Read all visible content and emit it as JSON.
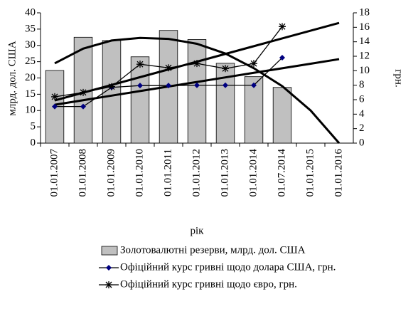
{
  "chart_data": {
    "type": "bar-line",
    "categories": [
      "01.01.2007",
      "01.01.2008",
      "01.01.2009",
      "01.01.2010",
      "01.01.2011",
      "01.01.2012",
      "01.01.2013",
      "01.01.2014",
      "01.07.2014",
      "01.01.2015",
      "01.01.2016"
    ],
    "xlabel": "рік",
    "ylabel": "млрд. дол. США",
    "y2label": "грн.",
    "ylim": [
      0,
      40
    ],
    "yticks": [
      0,
      5,
      10,
      15,
      20,
      25,
      30,
      35,
      40
    ],
    "y2lim": [
      0,
      18
    ],
    "y2ticks": [
      0,
      2,
      4,
      6,
      8,
      10,
      12,
      14,
      16,
      18
    ],
    "series": [
      {
        "name": "Золотовалютні резерви, млрд. дол. США",
        "kind": "bar",
        "axis": "y",
        "color": "#c0c0c0",
        "values": [
          22.3,
          32.5,
          31.5,
          26.5,
          34.6,
          31.8,
          24.5,
          20.4,
          17.1,
          null,
          null
        ]
      },
      {
        "name": "Офіційний курс гривні щодо долара США, грн.",
        "kind": "line",
        "marker": "diamond",
        "axis": "y2",
        "color": "#000080",
        "values": [
          5.05,
          5.05,
          7.7,
          7.95,
          7.95,
          7.99,
          7.99,
          7.99,
          11.8,
          null,
          null
        ]
      },
      {
        "name": "Офіційний курс гривні щодо євро, грн.",
        "kind": "line",
        "marker": "star",
        "axis": "y2",
        "color": "#000000",
        "values": [
          6.4,
          7.0,
          7.8,
          10.9,
          10.4,
          11.0,
          10.3,
          11.0,
          16.1,
          null,
          null
        ]
      }
    ],
    "trendlines": [
      {
        "axis": "y",
        "color": "#000000",
        "values": [
          24.5,
          29,
          31.5,
          32.3,
          32,
          30.5,
          27.5,
          23,
          17.5,
          10,
          0
        ]
      },
      {
        "axis": "y2",
        "color": "#000000",
        "values": [
          5.3,
          5.93,
          6.56,
          7.19,
          7.82,
          8.45,
          9.08,
          9.71,
          10.34,
          10.97,
          11.6
        ]
      },
      {
        "axis": "y2",
        "color": "#000000",
        "values": [
          5.9,
          6.97,
          8.04,
          9.11,
          10.18,
          11.25,
          12.32,
          13.39,
          14.46,
          15.53,
          16.6
        ]
      }
    ]
  }
}
